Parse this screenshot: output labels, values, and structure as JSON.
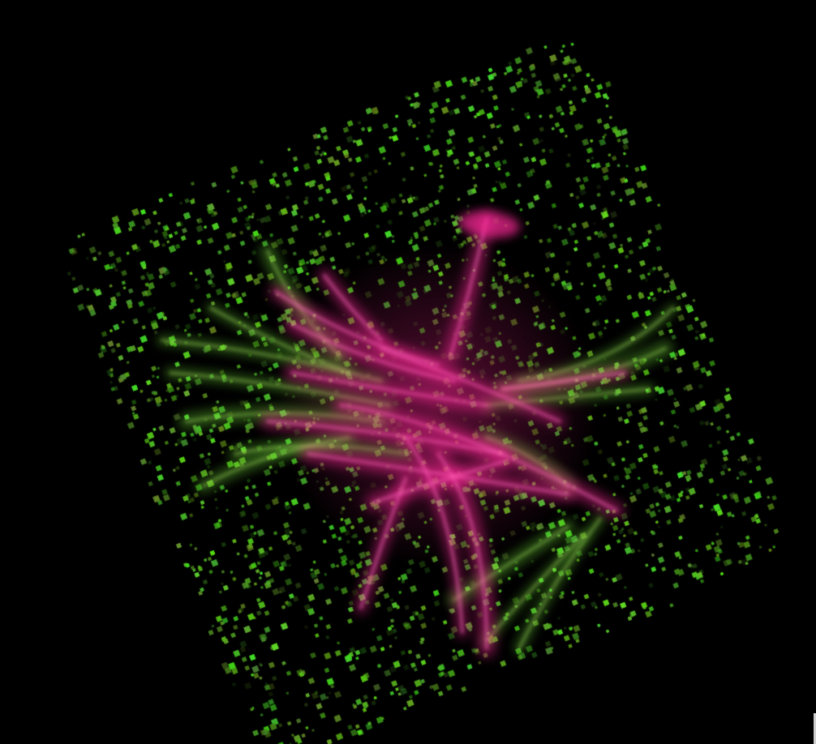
{
  "viewer": {
    "background_color": "#000000",
    "bottom_caption": "",
    "channels": [
      {
        "color": "#66cc33"
      },
      {
        "color": "#ff2a9a"
      }
    ]
  }
}
